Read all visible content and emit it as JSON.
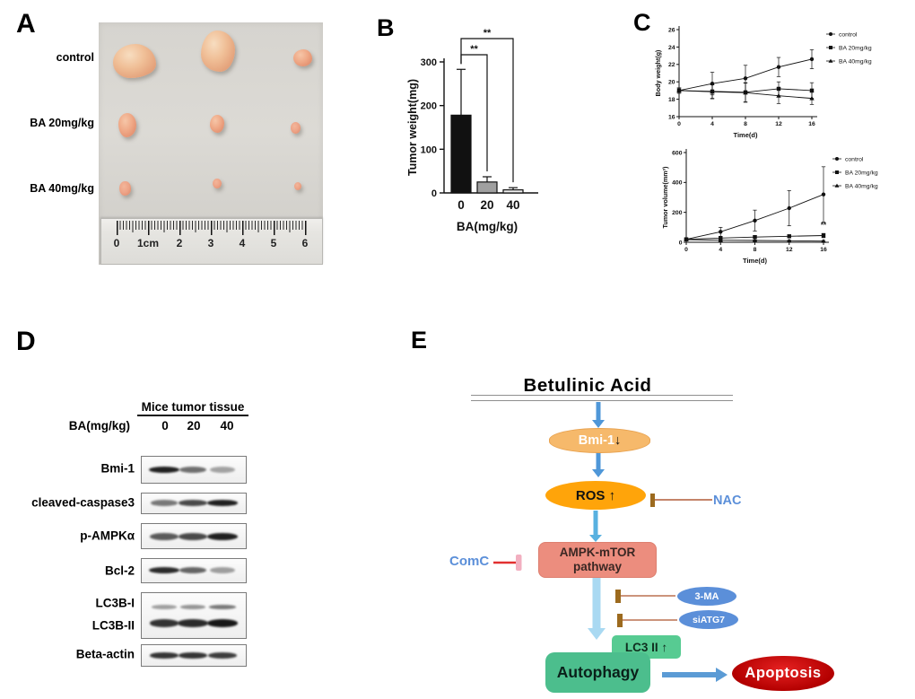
{
  "figure": {
    "panels": {
      "a": "A",
      "b": "B",
      "c": "C",
      "d": "D",
      "e": "E"
    },
    "panel_a": {
      "row_labels": [
        "control",
        "BA 20mg/kg",
        "BA 40mg/kg"
      ],
      "ruler_unit_labels": [
        "0",
        "1cm",
        "2",
        "3",
        "4",
        "5",
        "6"
      ]
    },
    "panel_d": {
      "header": "Mice tumor tissue",
      "dose_label": "BA(mg/kg)",
      "doses": [
        "0",
        "20",
        "40"
      ],
      "rows": [
        {
          "labels": [
            "Bmi-1"
          ],
          "bands": [
            {
              "intensities": [
                0.95,
                0.55,
                0.28
              ]
            }
          ]
        },
        {
          "labels": [
            "cleaved-caspase3"
          ],
          "bands": [
            {
              "intensities": [
                0.5,
                0.75,
                0.95
              ]
            }
          ]
        },
        {
          "labels": [
            "p-AMPKα"
          ],
          "bands": [
            {
              "intensities": [
                0.65,
                0.75,
                0.95
              ]
            }
          ]
        },
        {
          "labels": [
            "Bcl-2"
          ],
          "bands": [
            {
              "intensities": [
                0.9,
                0.6,
                0.3
              ]
            }
          ]
        },
        {
          "labels": [
            "LC3B-I",
            "LC3B-II"
          ],
          "bands": [
            {
              "intensities": [
                0.3,
                0.35,
                0.5
              ]
            },
            {
              "intensities": [
                0.85,
                0.9,
                1.0
              ]
            }
          ]
        },
        {
          "labels": [
            "Beta-actin"
          ],
          "bands": [
            {
              "intensities": [
                0.85,
                0.85,
                0.8
              ]
            }
          ]
        }
      ]
    },
    "panel_e": {
      "title": "Betulinic Acid",
      "nodes": {
        "bmi1": "Bmi-1",
        "bmi1_arrow": "↓",
        "ros": "ROS ↑",
        "nac": "NAC",
        "comc": "ComC",
        "ampk_line1": "AMPK-mTOR",
        "ampk_line2": "pathway",
        "three_ma": "3-MA",
        "siatg7": "siATG7",
        "lc3": "LC3 II ↑",
        "autophagy": "Autophagy",
        "apoptosis": "Apoptosis"
      },
      "colors": {
        "bmi1_fill": "#f6b96b",
        "ros_fill": "#ffa40a",
        "ampk_fill": "#ec8d7e",
        "inhibitor_blue": "#5b8fd9",
        "autophagy_fill": "#4cbe8d",
        "lc3_fill": "#57cb92",
        "apoptosis_fill": "#c00000",
        "arrow_blue": "#4f97d8",
        "arrow_light_blue": "#a9d9f2",
        "tbar_brown": "#9c6a1e",
        "inhibitor_line": "#c4846a"
      }
    }
  },
  "chart_data": [
    {
      "id": "tumor-weight",
      "type": "bar",
      "categories": [
        "0",
        "20",
        "40"
      ],
      "values": [
        178,
        25,
        7
      ],
      "errors": [
        105,
        12,
        5
      ],
      "bar_colors": [
        "#111111",
        "#a0a0a0",
        "#ececec"
      ],
      "xlabel": "BA(mg/kg)",
      "ylabel": "Tumor weight(mg)",
      "ylim": [
        0,
        300
      ],
      "yticks": [
        0,
        100,
        200,
        300
      ],
      "significance": [
        {
          "from": "0",
          "to": "20",
          "label": "**"
        },
        {
          "from": "0",
          "to": "40",
          "label": "**"
        }
      ]
    },
    {
      "id": "body-weight",
      "type": "line",
      "x": [
        0,
        4,
        8,
        12,
        16
      ],
      "xlabel": "Time(d)",
      "ylabel": "Body weight(g)",
      "ylim": [
        16,
        26
      ],
      "yticks": [
        16,
        18,
        20,
        22,
        24,
        26
      ],
      "series": [
        {
          "name": "control",
          "marker": "circle",
          "values": [
            19.0,
            19.8,
            20.4,
            21.7,
            22.6
          ],
          "errors": [
            0.3,
            1.3,
            1.5,
            1.1,
            1.1
          ]
        },
        {
          "name": "BA 20mg/kg",
          "marker": "square",
          "values": [
            19.0,
            18.9,
            18.8,
            19.2,
            19.0
          ],
          "errors": [
            0.3,
            0.8,
            1.1,
            0.8,
            0.9
          ]
        },
        {
          "name": "BA 40mg/kg",
          "marker": "triangle",
          "values": [
            19.0,
            18.85,
            18.75,
            18.4,
            18.1
          ],
          "errors": [
            0.3,
            0.8,
            1.1,
            0.9,
            0.7
          ]
        }
      ]
    },
    {
      "id": "tumor-volume",
      "type": "line",
      "x": [
        0,
        4,
        8,
        12,
        16
      ],
      "xlabel": "Time(d)",
      "ylabel": "Tumor volume(mm³)",
      "ylim": [
        0,
        600
      ],
      "yticks": [
        0,
        200,
        400,
        600
      ],
      "annotation": {
        "text": "**",
        "x": 16,
        "series": "BA 20mg/kg"
      },
      "series": [
        {
          "name": "control",
          "marker": "circle",
          "values": [
            20,
            70,
            145,
            228,
            320
          ],
          "errors": [
            10,
            30,
            70,
            118,
            185
          ]
        },
        {
          "name": "BA 20mg/kg",
          "marker": "square",
          "values": [
            20,
            28,
            35,
            40,
            45
          ],
          "errors": [
            5,
            8,
            8,
            10,
            14
          ]
        },
        {
          "name": "BA 40mg/kg",
          "marker": "triangle",
          "values": [
            18,
            14,
            12,
            10,
            8
          ],
          "errors": [
            4,
            4,
            4,
            4,
            4
          ]
        }
      ]
    }
  ]
}
